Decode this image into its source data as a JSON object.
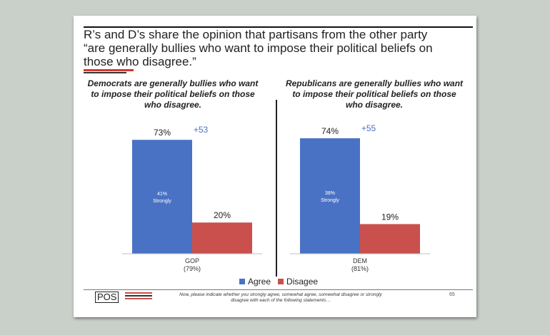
{
  "slide": {
    "title": "R’s and D’s share the opinion that partisans from the other party “are generally bullies who want to impose their political beliefs on those who disagree.”",
    "footnote": "Now, please indicate whether you strongly agree, somewhat agree, somewhat disagree or strongly disagree with each of the following statements…",
    "page_number": "65",
    "logo_text": "POS"
  },
  "legend": [
    {
      "label": "Agree",
      "color": "#4a72c4"
    },
    {
      "label": "Disagee",
      "color": "#c9504c"
    }
  ],
  "chart_data": [
    {
      "type": "bar",
      "title": "Democrats are generally bullies who want to impose their political beliefs on those who disagree.",
      "categories": [
        "GOP"
      ],
      "category_sublabels": [
        "(79%)"
      ],
      "series": [
        {
          "name": "Agree",
          "values": [
            73
          ],
          "labels": [
            "73%"
          ],
          "inner_label": [
            "41%",
            "Strongly"
          ],
          "color": "#4a72c4"
        },
        {
          "name": "Disagee",
          "values": [
            20
          ],
          "labels": [
            "20%"
          ],
          "color": "#c9504c"
        }
      ],
      "difference_label": "+53",
      "ylim": [
        0,
        80
      ]
    },
    {
      "type": "bar",
      "title": "Republicans are generally bullies who want to impose their political beliefs on those who disagree.",
      "categories": [
        "DEM"
      ],
      "category_sublabels": [
        "(81%)"
      ],
      "series": [
        {
          "name": "Agree",
          "values": [
            74
          ],
          "labels": [
            "74%"
          ],
          "inner_label": [
            "38%",
            "Strongly"
          ],
          "color": "#4a72c4"
        },
        {
          "name": "Disagee",
          "values": [
            19
          ],
          "labels": [
            "19%"
          ],
          "color": "#c9504c"
        }
      ],
      "difference_label": "+55",
      "ylim": [
        0,
        80
      ]
    }
  ]
}
